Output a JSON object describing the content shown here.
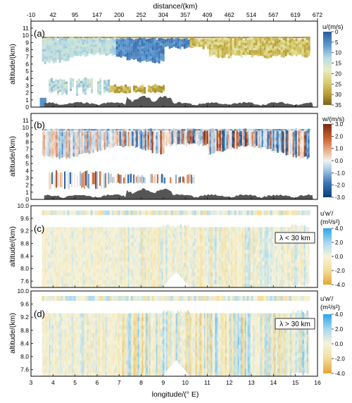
{
  "figure": {
    "top_axis": {
      "label": "distance/(km)",
      "ticks": [
        "-10",
        "42",
        "95",
        "147",
        "200",
        "252",
        "304",
        "357",
        "409",
        "462",
        "514",
        "567",
        "619",
        "672"
      ]
    },
    "bottom_axis": {
      "label": "longitude/(° E)",
      "ticks": [
        "3",
        "4",
        "5",
        "6",
        "7",
        "8",
        "9",
        "10",
        "11",
        "12",
        "13",
        "14",
        "15",
        "16"
      ]
    }
  },
  "chart_data": [
    {
      "type": "heatmap",
      "panel_label": "(a)",
      "ylabel": "altitude/(km)",
      "x_range": [
        3,
        16
      ],
      "ylim": [
        0,
        11
      ],
      "y_ticks": [
        "0",
        "1",
        "2",
        "3",
        "4",
        "5",
        "6",
        "7",
        "8",
        "9",
        "10",
        "11"
      ],
      "colorbar": {
        "title": "u/(m/s)",
        "ticks": [
          "0",
          "5",
          "10",
          "15",
          "20",
          "25",
          "30",
          "35"
        ],
        "range": [
          0,
          35
        ],
        "direction": "reversed",
        "colors": [
          "#2c5aa0",
          "#5c99cf",
          "#b8dbe3",
          "#e8eebf",
          "#d8cb6e",
          "#b59a33",
          "#7a6420"
        ]
      },
      "layers": [
        {
          "name": "upper band",
          "bottom_km": 6.3,
          "top_km": 9.4,
          "x_extent": [
            3.5,
            15.6
          ],
          "u_typical": [
            8,
            18
          ]
        },
        {
          "name": "top strip",
          "bottom_km": 9.6,
          "top_km": 9.8,
          "x_extent": [
            3.5,
            15.6
          ],
          "u_typical": 30
        },
        {
          "name": "lower layer",
          "bottom_km": 1.5,
          "top_km": 4.0,
          "x_extent": [
            3.8,
            9.0
          ],
          "u_typical": [
            12,
            28
          ]
        },
        {
          "name": "surface cell",
          "bottom_km": 0.0,
          "top_km": 1.3,
          "x_extent": [
            3.4,
            3.7
          ],
          "u_typical": 5
        }
      ],
      "grid": false
    },
    {
      "type": "heatmap",
      "panel_label": "(b)",
      "ylabel": "altitude/(km)",
      "x_range": [
        3,
        16
      ],
      "ylim": [
        0,
        11
      ],
      "y_ticks": [
        "0",
        "1",
        "2",
        "3",
        "4",
        "5",
        "6",
        "7",
        "8",
        "9",
        "10",
        "11"
      ],
      "colorbar": {
        "title": "w/(m/s)",
        "ticks": [
          "-3.0",
          "-2.0",
          "-1.0",
          "0.0",
          "1.0",
          "2.0",
          "3.0"
        ],
        "range": [
          -3.0,
          3.0
        ],
        "colors": [
          "#0b3d7a",
          "#3a78b8",
          "#a8cae3",
          "#f2f2f2",
          "#eec1a2",
          "#cc6433",
          "#7a2810"
        ]
      },
      "layers": [
        {
          "name": "upper band",
          "bottom_km": 6.0,
          "top_km": 9.4,
          "x_extent": [
            3.5,
            15.6
          ],
          "w_range": [
            -3.0,
            3.0
          ]
        },
        {
          "name": "lower layer",
          "bottom_km": 1.5,
          "top_km": 4.0,
          "x_extent": [
            3.8,
            10.5
          ],
          "w_range": [
            -2.0,
            2.0
          ]
        }
      ],
      "grid": false
    },
    {
      "type": "heatmap",
      "panel_label": "(c)",
      "annotation": "λ < 30 km",
      "ylabel": "altitude/(km)",
      "x_range": [
        3,
        16
      ],
      "ylim": [
        7.4,
        10.0
      ],
      "y_ticks": [
        "7.6",
        "8.0",
        "8.4",
        "8.8",
        "9.2",
        "9.6",
        "10.0"
      ],
      "colorbar": {
        "title_line1": "u'w'/",
        "title_line2": "(m²/s²)",
        "ticks": [
          "-4.0",
          "-2.0",
          "0.0",
          "2.0",
          "4.0"
        ],
        "range": [
          -4.0,
          4.0
        ],
        "colors": [
          "#e6a532",
          "#f1dc9a",
          "#f7f3d9",
          "#a7d8f0",
          "#2aa5ea"
        ]
      },
      "grid": false
    },
    {
      "type": "heatmap",
      "panel_label": "(d)",
      "annotation": "λ > 30 km",
      "ylabel": "altitude/(km)",
      "xlabel": "longitude/(° E)",
      "x_range": [
        3,
        16
      ],
      "ylim": [
        7.4,
        10.0
      ],
      "y_ticks": [
        "7.6",
        "8.0",
        "8.4",
        "8.8",
        "9.2",
        "9.6",
        "10.0"
      ],
      "colorbar": {
        "title_line1": "u'w'/",
        "title_line2": "(m²/s²)",
        "ticks": [
          "-4.0",
          "-2.0",
          "0.0",
          "2.0",
          "4.0"
        ],
        "range": [
          -4.0,
          4.0
        ],
        "colors": [
          "#e6a532",
          "#f1dc9a",
          "#f7f3d9",
          "#a7d8f0",
          "#2aa5ea"
        ]
      },
      "grid": false
    }
  ]
}
